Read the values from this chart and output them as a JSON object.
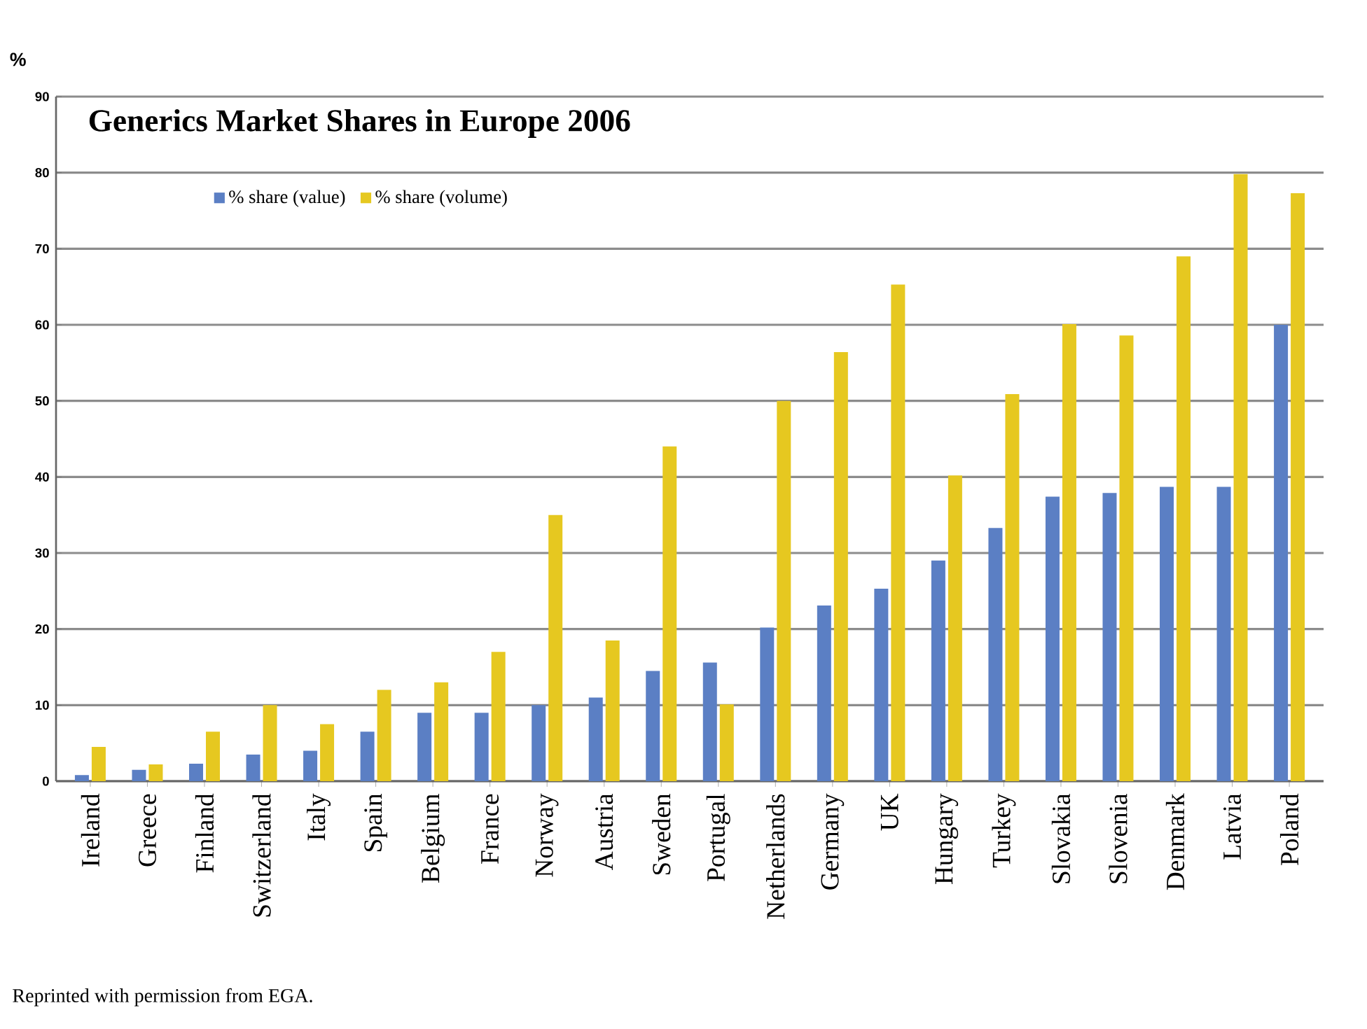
{
  "chart_data": {
    "type": "bar",
    "title": "Generics Market Shares in Europe 2006",
    "ylabel": "%",
    "categories": [
      "Ireland",
      "Greece",
      "Finland",
      "Switzerland",
      "Italy",
      "Spain",
      "Belgium",
      "France",
      "Norway",
      "Austria",
      "Sweden",
      "Portugal",
      "Netherlands",
      "Germany",
      "UK",
      "Hungary",
      "Turkey",
      "Slovakia",
      "Slovenia",
      "Denmark",
      "Latvia",
      "Poland"
    ],
    "series": [
      {
        "name": "% share (value)",
        "color": "#5b7fc4",
        "values": [
          0.8,
          1.5,
          2.3,
          3.5,
          4,
          6.5,
          9,
          9,
          10,
          11,
          14.5,
          15.6,
          20.2,
          23.1,
          25.3,
          29,
          33.3,
          37.4,
          37.9,
          38.7,
          38.7,
          60
        ]
      },
      {
        "name": "% share (volume)",
        "color": "#e6c820",
        "values": [
          4.5,
          2.2,
          6.5,
          10,
          7.5,
          12,
          13,
          17,
          35,
          18.5,
          44,
          10.1,
          50,
          56.4,
          65.3,
          40.2,
          50.9,
          60.1,
          58.6,
          69,
          79.8,
          77.3
        ]
      }
    ],
    "ylim": [
      0,
      90
    ],
    "yticks": [
      0,
      10,
      20,
      30,
      40,
      50,
      60,
      70,
      80,
      90
    ],
    "grid": "y",
    "legend": "top left",
    "annotations": [
      "Reprinted with permission from EGA."
    ]
  }
}
